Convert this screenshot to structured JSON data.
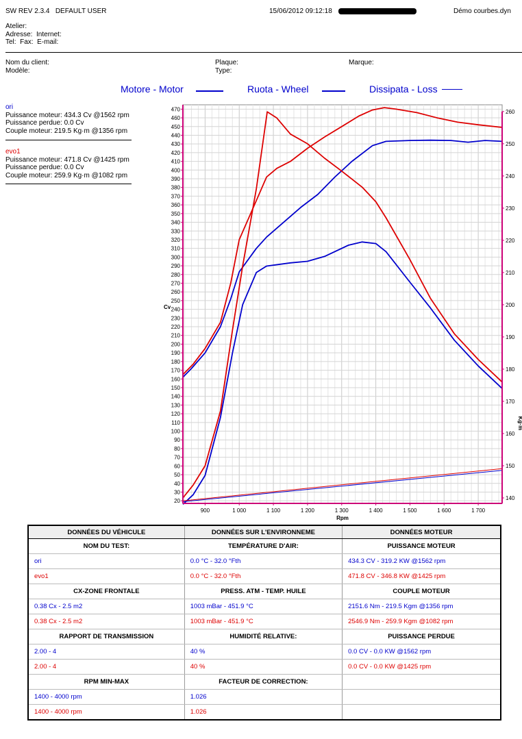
{
  "header": {
    "software": "SW REV 2.3.4",
    "user": "DEFAULT USER",
    "datetime": "15/06/2012 09:12:18",
    "filename": "Démo courbes.dyn"
  },
  "workshop": {
    "atelier": "Atelier:",
    "adresse": "Adresse:",
    "internet": "Internet:",
    "tel": "Tel:",
    "fax": "Fax:",
    "email": "E-mail:"
  },
  "client": {
    "nom": "Nom du client:",
    "modele": "Modèle:",
    "plaque": "Plaque:",
    "type": "Type:",
    "marque": "Marque:"
  },
  "legend": {
    "motor": "Motore - Motor",
    "wheel": "Ruota - Wheel",
    "loss": "Dissipata - Loss",
    "color": "#0000cc"
  },
  "runs": [
    {
      "name": "ori",
      "color": "#0000cc",
      "power": "Puissance moteur: 434.3 Cv @1562 rpm",
      "lost": "Puissance perdue: 0.0 Cv",
      "torque": "Couple moteur: 219.5 Kg·m @1356 rpm"
    },
    {
      "name": "evo1",
      "color": "#dd0000",
      "power": "Puissance moteur: 471.8 Cv @1425 rpm",
      "lost": "Puissance perdue: 0.0 Cv",
      "torque": "Couple moteur: 259.9 Kg·m @1082 rpm"
    }
  ],
  "chart_data": {
    "type": "line",
    "xlabel": "Rpm",
    "ylabel": "Cv",
    "y2label": "Kg·m",
    "xlim": [
      835,
      1770
    ],
    "ylim": [
      17,
      475
    ],
    "y2lim": [
      138.3,
      262.1
    ],
    "x_ticks": [
      "900",
      "1 000",
      "1 100",
      "1 200",
      "1 300",
      "1 400",
      "1 500",
      "1 600",
      "1 700"
    ],
    "x_tick_values": [
      900,
      1000,
      1100,
      1200,
      1300,
      1400,
      1500,
      1600,
      1700
    ],
    "y_ticks": [
      20,
      30,
      40,
      50,
      60,
      70,
      80,
      90,
      100,
      110,
      120,
      130,
      140,
      150,
      160,
      170,
      180,
      190,
      200,
      210,
      220,
      230,
      240,
      250,
      260,
      270,
      280,
      290,
      300,
      310,
      320,
      330,
      340,
      350,
      360,
      370,
      380,
      390,
      400,
      410,
      420,
      430,
      440,
      450,
      460,
      470
    ],
    "y2_ticks": [
      140,
      150,
      160,
      170,
      180,
      190,
      200,
      210,
      220,
      230,
      240,
      250,
      260
    ],
    "grid": true,
    "series": [
      {
        "name": "ori",
        "kind": "power",
        "color": "#0000cc",
        "x": [
          835,
          860,
          900,
          945,
          975,
          1000,
          1050,
          1080,
          1130,
          1180,
          1230,
          1280,
          1330,
          1390,
          1430,
          1500,
          1560,
          1620,
          1670,
          1720,
          1770
        ],
        "y": [
          162,
          172,
          190,
          220,
          252,
          283,
          310,
          323,
          340,
          357,
          372,
          392,
          410,
          428,
          433,
          434,
          434.3,
          434,
          432,
          434,
          433
        ]
      },
      {
        "name": "ori",
        "kind": "torque",
        "color": "#0000cc",
        "x": [
          835,
          865,
          900,
          945,
          980,
          1010,
          1050,
          1080,
          1150,
          1200,
          1250,
          1320,
          1360,
          1400,
          1430,
          1500,
          1560,
          1630,
          1700,
          1770
        ],
        "y": [
          138,
          141,
          147,
          165,
          185,
          200,
          210,
          212,
          213,
          213.5,
          215,
          218.5,
          219.5,
          219,
          216.5,
          207,
          199,
          189,
          181,
          174
        ]
      },
      {
        "name": "evo1",
        "kind": "power",
        "color": "#dd0000",
        "x": [
          835,
          865,
          900,
          945,
          975,
          1000,
          1050,
          1080,
          1110,
          1150,
          1200,
          1250,
          1300,
          1350,
          1390,
          1425,
          1460,
          1520,
          1580,
          1640,
          1700,
          1770
        ],
        "y": [
          165,
          177,
          195,
          225,
          270,
          320,
          365,
          392,
          402,
          410,
          425,
          438,
          450,
          462,
          469,
          471.8,
          470,
          466,
          460,
          455,
          452,
          449
        ]
      },
      {
        "name": "evo1",
        "kind": "torque",
        "color": "#dd0000",
        "x": [
          835,
          865,
          900,
          945,
          980,
          1010,
          1050,
          1082,
          1110,
          1150,
          1200,
          1250,
          1300,
          1360,
          1400,
          1430,
          1500,
          1560,
          1630,
          1700,
          1770
        ],
        "y": [
          140,
          144,
          150,
          167,
          192,
          212,
          236,
          259.9,
          258,
          253,
          250,
          245.5,
          241.5,
          236.5,
          232,
          227,
          214,
          202,
          191,
          183,
          176
        ]
      },
      {
        "name": "ori",
        "kind": "loss",
        "color": "#0000cc",
        "x": [
          835,
          1770
        ],
        "y": [
          19,
          55
        ]
      },
      {
        "name": "evo1",
        "kind": "loss",
        "color": "#dd0000",
        "x": [
          835,
          1770
        ],
        "y": [
          20,
          57
        ]
      }
    ]
  },
  "table": {
    "headers": [
      "DONNÉES DU VÉHICULE",
      "DONNÉES SUR L'ENVIRONNEME",
      "DONNÉES MOTEUR"
    ],
    "sections": [
      {
        "titles": [
          "NOM DU TEST:",
          "TEMPÉRATURE D'AIR:",
          "PUISSANCE MOTEUR"
        ],
        "rows": [
          [
            "ori",
            "0.0 °C - 32.0 °Fth",
            "434.3 CV - 319.2 KW  @1562 rpm"
          ],
          [
            "evo1",
            "0.0 °C - 32.0 °Fth",
            "471.8 CV - 346.8 KW  @1425 rpm"
          ]
        ]
      },
      {
        "titles": [
          "CX-ZONE FRONTALE",
          "PRESS. ATM - TEMP. HUILE",
          "COUPLE MOTEUR"
        ],
        "rows": [
          [
            "0.38 Cx - 2.5 m2",
            "1003 mBar - 451.9 °C",
            "2151.6 Nm - 219.5 Kgm  @1356 rpm"
          ],
          [
            "0.38 Cx - 2.5 m2",
            "1003 mBar - 451.9 °C",
            "2546.9 Nm - 259.9 Kgm  @1082 rpm"
          ]
        ]
      },
      {
        "titles": [
          "RAPPORT DE TRANSMISSION",
          "HUMIDITÉ RELATIVE:",
          "PUISSANCE PERDUE"
        ],
        "rows": [
          [
            "2.00 - 4",
            "40 %",
            "0.0 CV - 0.0 KW  @1562 rpm"
          ],
          [
            "2.00 - 4",
            "40 %",
            "0.0 CV - 0.0 KW  @1425 rpm"
          ]
        ]
      },
      {
        "titles": [
          "RPM MIN-MAX",
          "FACTEUR DE CORRECTION:",
          ""
        ],
        "rows": [
          [
            "1400 - 4000 rpm",
            "1.026",
            ""
          ],
          [
            "1400 - 4000 rpm",
            "1.026",
            ""
          ]
        ]
      }
    ]
  }
}
